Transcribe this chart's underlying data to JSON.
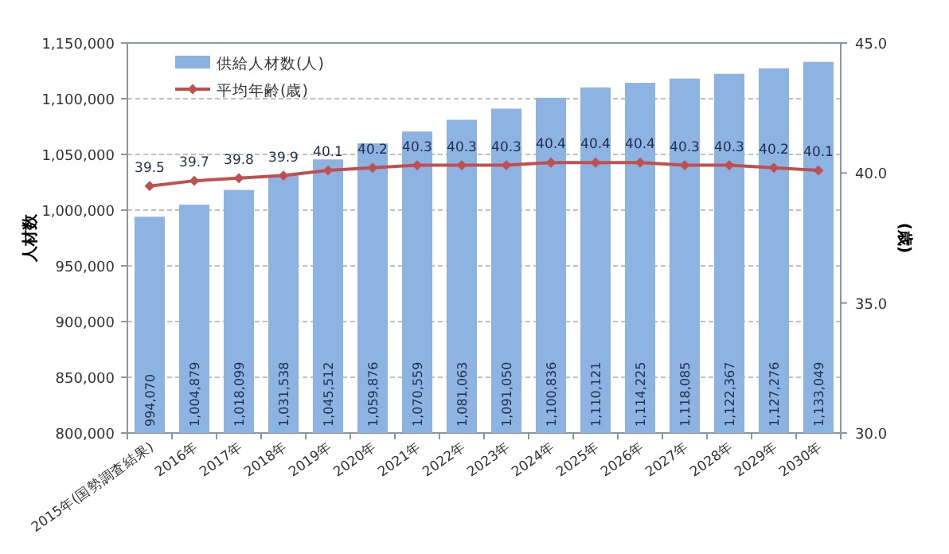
{
  "chart_data": {
    "type": "bar",
    "categories": [
      "2015年(国勢調査結果)",
      "2016年",
      "2017年",
      "2018年",
      "2019年",
      "2020年",
      "2021年",
      "2022年",
      "2023年",
      "2024年",
      "2025年",
      "2026年",
      "2027年",
      "2028年",
      "2029年",
      "2030年"
    ],
    "series": [
      {
        "name": "供給人材数(人)",
        "color": "#8db3e2",
        "values": [
          994070,
          1004879,
          1018099,
          1031538,
          1045512,
          1059876,
          1070559,
          1081063,
          1091050,
          1100836,
          1110121,
          1114225,
          1118085,
          1122367,
          1127276,
          1133049
        ],
        "value_labels": [
          "994,070",
          "1,004,879",
          "1,018,099",
          "1,031,538",
          "1,045,512",
          "1,059,876",
          "1,070,559",
          "1,081,063",
          "1,091,050",
          "1,100,836",
          "1,110,121",
          "1,114,225",
          "1,118,085",
          "1,122,367",
          "1,127,276",
          "1,133,049"
        ]
      },
      {
        "name": "平均年齢(歳)",
        "type": "line",
        "axis": "y2",
        "color": "#c0504d",
        "marker": "diamond",
        "values": [
          39.5,
          39.7,
          39.8,
          39.9,
          40.1,
          40.2,
          40.3,
          40.3,
          40.3,
          40.4,
          40.4,
          40.4,
          40.3,
          40.3,
          40.2,
          40.1
        ]
      }
    ],
    "ylabel": "人材数",
    "y2label": "(歳)",
    "ylim": [
      800000,
      1150000
    ],
    "yticks": [
      {
        "value": 800000,
        "label": "800,000"
      },
      {
        "value": 850000,
        "label": "850,000"
      },
      {
        "value": 900000,
        "label": "900,000"
      },
      {
        "value": 950000,
        "label": "950,000"
      },
      {
        "value": 1000000,
        "label": "1,000,000"
      },
      {
        "value": 1050000,
        "label": "1,050,000"
      },
      {
        "value": 1100000,
        "label": "1,100,000"
      },
      {
        "value": 1150000,
        "label": "1,150,000"
      }
    ],
    "y2lim": [
      30,
      45
    ],
    "y2ticks": [
      {
        "value": 30,
        "label": "30.0"
      },
      {
        "value": 35,
        "label": "35.0"
      },
      {
        "value": 40,
        "label": "40.0"
      },
      {
        "value": 45,
        "label": "45.0"
      }
    ],
    "grid": "y",
    "legend": "top left",
    "data_labels": true
  }
}
